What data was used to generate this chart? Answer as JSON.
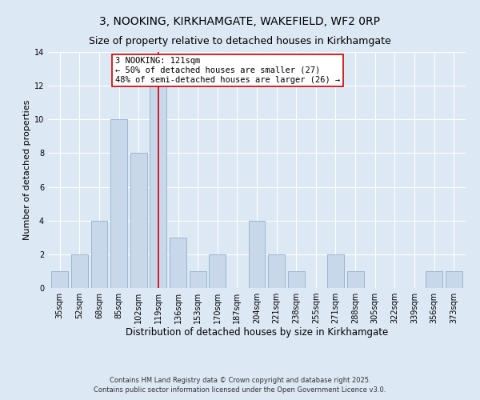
{
  "title1": "3, NOOKING, KIRKHAMGATE, WAKEFIELD, WF2 0RP",
  "title2": "Size of property relative to detached houses in Kirkhamgate",
  "xlabel": "Distribution of detached houses by size in Kirkhamgate",
  "ylabel": "Number of detached properties",
  "bar_labels": [
    "35sqm",
    "52sqm",
    "68sqm",
    "85sqm",
    "102sqm",
    "119sqm",
    "136sqm",
    "153sqm",
    "170sqm",
    "187sqm",
    "204sqm",
    "221sqm",
    "238sqm",
    "255sqm",
    "271sqm",
    "288sqm",
    "305sqm",
    "322sqm",
    "339sqm",
    "356sqm",
    "373sqm"
  ],
  "bar_values": [
    1,
    2,
    4,
    10,
    8,
    12,
    3,
    1,
    2,
    0,
    4,
    2,
    1,
    0,
    2,
    1,
    0,
    0,
    0,
    1,
    1
  ],
  "bar_color": "#c8d8ea",
  "bar_edgecolor": "#9ab8d0",
  "highlight_index": 5,
  "highlight_line_color": "#cc0000",
  "annotation_title": "3 NOOKING: 121sqm",
  "annotation_line1": "← 50% of detached houses are smaller (27)",
  "annotation_line2": "48% of semi-detached houses are larger (26) →",
  "annotation_box_facecolor": "#ffffff",
  "annotation_box_edgecolor": "#cc0000",
  "ylim": [
    0,
    14
  ],
  "yticks": [
    0,
    2,
    4,
    6,
    8,
    10,
    12,
    14
  ],
  "background_color": "#dce8f4",
  "grid_color": "#ffffff",
  "footer1": "Contains HM Land Registry data © Crown copyright and database right 2025.",
  "footer2": "Contains public sector information licensed under the Open Government Licence v3.0.",
  "title1_fontsize": 10,
  "title2_fontsize": 9,
  "xlabel_fontsize": 8.5,
  "ylabel_fontsize": 8,
  "tick_fontsize": 7,
  "annotation_fontsize": 7.5,
  "footer_fontsize": 6
}
